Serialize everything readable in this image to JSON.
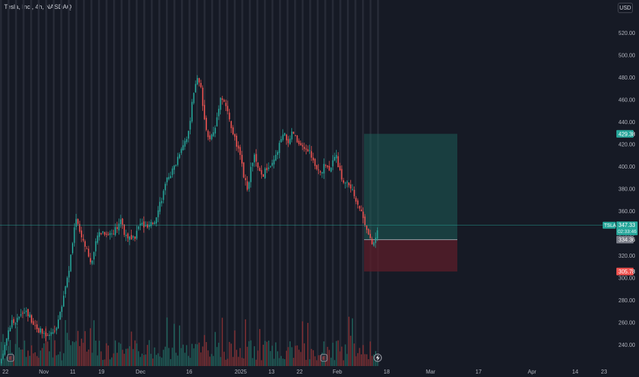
{
  "header": {
    "symbol_title": "Tesla, Inc., 4h, NASDAQ",
    "currency_label": "USD"
  },
  "price_scale": {
    "ticks": [
      "520.00",
      "500.00",
      "480.00",
      "460.00",
      "440.00",
      "420.00",
      "400.00",
      "380.00",
      "360.00",
      "340.00",
      "320.00",
      "300.00",
      "280.00",
      "260.00",
      "240.00"
    ]
  },
  "time_axis": {
    "labels": [
      "22",
      "Nov",
      "11",
      "19",
      "Dec",
      "16",
      "2025",
      "13",
      "22",
      "Feb",
      "18",
      "Mar",
      "17",
      "Apr",
      "14",
      "23"
    ]
  },
  "price_labels": {
    "symbol_tag": "TSLA",
    "current_price": "347.33",
    "countdown": "02:33:46",
    "target": "429.38",
    "entry": "334.36",
    "stop": "305.78"
  },
  "event_markers": {
    "earnings": "E"
  },
  "colors": {
    "background": "#161a25",
    "up": "#26a69a",
    "down": "#ef5350",
    "profit_zone": "#1d5c57",
    "loss_zone": "#5c1e2a",
    "price_line": "#26a69a"
  },
  "chart_data": {
    "type": "candlestick",
    "title": "Tesla, Inc., 4h, NASDAQ",
    "ylim": [
      225,
      540
    ],
    "y_scale": "linear",
    "grid": false,
    "position_tool": {
      "target": 429.38,
      "entry": 334.36,
      "stop": 305.78
    },
    "price_path": [
      [
        0,
        222
      ],
      [
        6,
        240
      ],
      [
        12,
        255
      ],
      [
        17,
        262
      ],
      [
        22,
        258
      ],
      [
        28,
        268
      ],
      [
        34,
        272
      ],
      [
        40,
        268
      ],
      [
        46,
        262
      ],
      [
        52,
        256
      ],
      [
        58,
        252
      ],
      [
        64,
        248
      ],
      [
        70,
        248
      ],
      [
        76,
        250
      ],
      [
        82,
        258
      ],
      [
        88,
        270
      ],
      [
        94,
        292
      ],
      [
        99,
        305
      ],
      [
        103,
        322
      ],
      [
        107,
        340
      ],
      [
        110,
        356
      ],
      [
        113,
        348
      ],
      [
        116,
        340
      ],
      [
        120,
        335
      ],
      [
        124,
        330
      ],
      [
        128,
        322
      ],
      [
        132,
        312
      ],
      [
        136,
        320
      ],
      [
        140,
        336
      ],
      [
        145,
        342
      ],
      [
        150,
        342
      ],
      [
        155,
        340
      ],
      [
        160,
        340
      ],
      [
        166,
        342
      ],
      [
        172,
        346
      ],
      [
        176,
        356
      ],
      [
        180,
        340
      ],
      [
        185,
        338
      ],
      [
        190,
        334
      ],
      [
        195,
        335
      ],
      [
        200,
        344
      ],
      [
        205,
        350
      ],
      [
        210,
        346
      ],
      [
        215,
        345
      ],
      [
        220,
        348
      ],
      [
        225,
        352
      ],
      [
        230,
        364
      ],
      [
        235,
        372
      ],
      [
        240,
        382
      ],
      [
        245,
        392
      ],
      [
        250,
        396
      ],
      [
        255,
        402
      ],
      [
        260,
        412
      ],
      [
        265,
        420
      ],
      [
        270,
        425
      ],
      [
        275,
        432
      ],
      [
        278,
        448
      ],
      [
        281,
        466
      ],
      [
        284,
        472
      ],
      [
        287,
        478
      ],
      [
        290,
        474
      ],
      [
        293,
        468
      ],
      [
        296,
        446
      ],
      [
        299,
        432
      ],
      [
        302,
        430
      ],
      [
        305,
        426
      ],
      [
        308,
        428
      ],
      [
        312,
        432
      ],
      [
        316,
        446
      ],
      [
        320,
        462
      ],
      [
        324,
        462
      ],
      [
        328,
        456
      ],
      [
        332,
        446
      ],
      [
        336,
        436
      ],
      [
        340,
        428
      ],
      [
        344,
        420
      ],
      [
        348,
        412
      ],
      [
        352,
        400
      ],
      [
        356,
        388
      ],
      [
        360,
        378
      ],
      [
        363,
        388
      ],
      [
        366,
        402
      ],
      [
        370,
        410
      ],
      [
        374,
        400
      ],
      [
        378,
        394
      ],
      [
        382,
        392
      ],
      [
        386,
        396
      ],
      [
        390,
        400
      ],
      [
        394,
        398
      ],
      [
        398,
        404
      ],
      [
        402,
        410
      ],
      [
        406,
        418
      ],
      [
        410,
        426
      ],
      [
        414,
        428
      ],
      [
        418,
        424
      ],
      [
        422,
        422
      ],
      [
        426,
        432
      ],
      [
        430,
        426
      ],
      [
        434,
        420
      ],
      [
        438,
        418
      ],
      [
        442,
        414
      ],
      [
        446,
        416
      ],
      [
        450,
        414
      ],
      [
        454,
        410
      ],
      [
        458,
        400
      ],
      [
        462,
        396
      ],
      [
        466,
        394
      ],
      [
        470,
        398
      ],
      [
        474,
        402
      ],
      [
        478,
        398
      ],
      [
        482,
        402
      ],
      [
        486,
        404
      ],
      [
        490,
        410
      ],
      [
        494,
        396
      ],
      [
        498,
        390
      ],
      [
        502,
        384
      ],
      [
        506,
        386
      ],
      [
        510,
        382
      ],
      [
        514,
        376
      ],
      [
        518,
        372
      ],
      [
        522,
        366
      ],
      [
        526,
        360
      ],
      [
        530,
        352
      ],
      [
        534,
        346
      ],
      [
        537,
        338
      ],
      [
        540,
        332
      ],
      [
        543,
        330
      ],
      [
        546,
        334
      ],
      [
        549,
        340
      ],
      [
        552,
        347
      ]
    ],
    "current_price": 347.33
  }
}
